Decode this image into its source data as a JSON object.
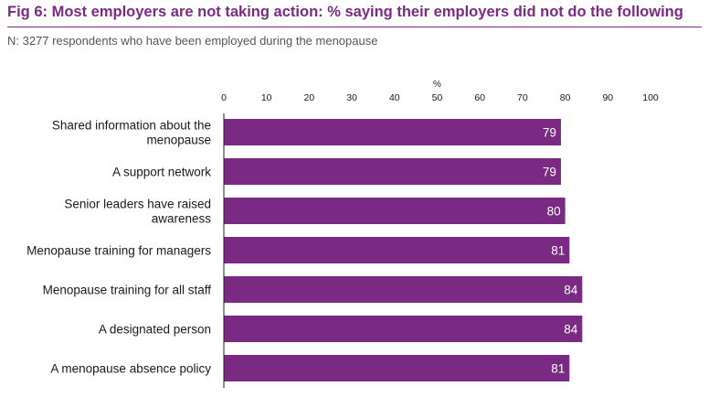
{
  "figure": {
    "title": "Fig 6: Most employers are not taking action: % saying their employers did not do the following",
    "subtitle": "N: 3277 respondents who have been employed during the menopause"
  },
  "colors": {
    "accent": "#7b2a84",
    "bar": "#7b2a84",
    "bar_label": "#ffffff"
  },
  "chart_data": {
    "type": "bar",
    "orientation": "horizontal",
    "axis_unit_label": "%",
    "xlim": [
      0,
      100
    ],
    "ticks": [
      0,
      10,
      20,
      30,
      40,
      50,
      60,
      70,
      80,
      90,
      100
    ],
    "tick_position": "top",
    "grid": false,
    "legend": "none",
    "categories": [
      [
        "Shared information about the",
        "menopause"
      ],
      [
        "A support network"
      ],
      [
        "Senior leaders have raised",
        "awareness"
      ],
      [
        "Menopause training for managers"
      ],
      [
        "Menopause training for all staff"
      ],
      [
        "A designated person"
      ],
      [
        "A menopause absence policy"
      ]
    ],
    "values": [
      79,
      79,
      80,
      81,
      84,
      84,
      81
    ]
  }
}
